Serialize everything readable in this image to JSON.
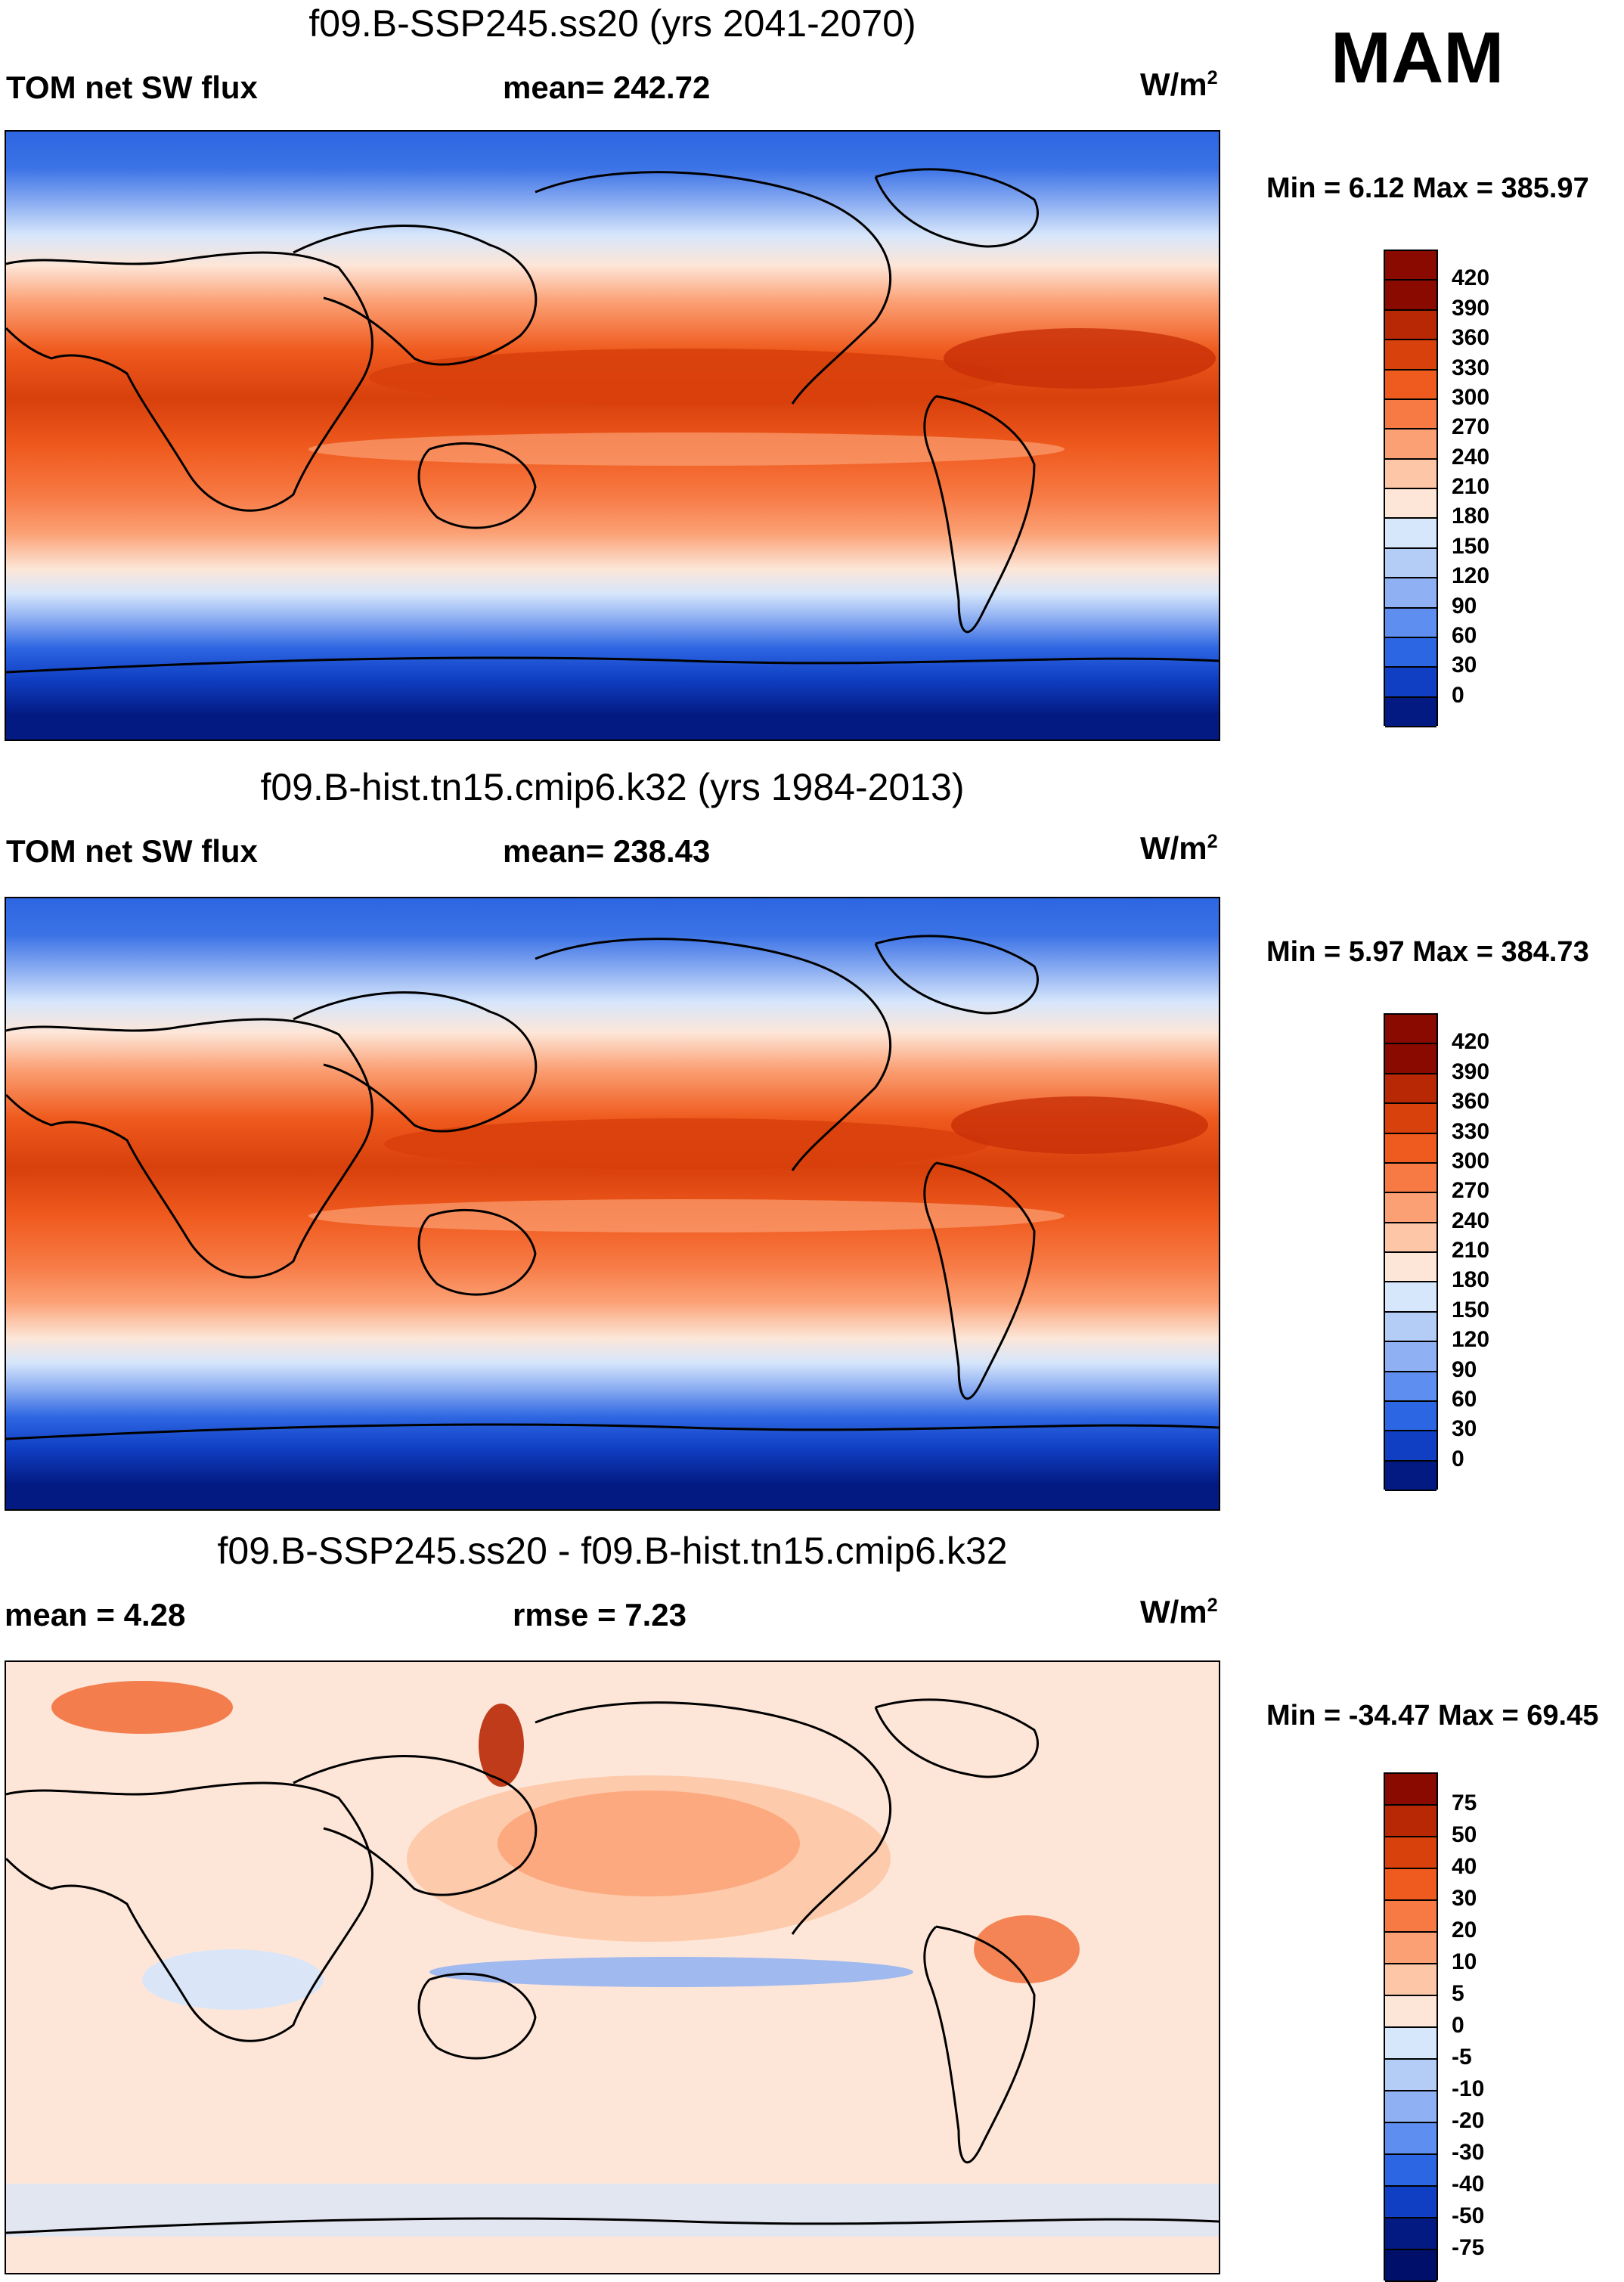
{
  "season": "MAM",
  "panels": [
    {
      "title": "f09.B-SSP245.ss20 (yrs 2041-2070)",
      "left_label": "TOM net SW flux",
      "center_label": "mean= 242.72",
      "units_base": "W/m",
      "units_exp": "2",
      "minmax": "Min =    6.12 Max = 385.97",
      "kind": "abs",
      "colorbar": {
        "labels": [
          "420",
          "390",
          "360",
          "330",
          "300",
          "270",
          "240",
          "210",
          "180",
          "150",
          "120",
          "90",
          "60",
          "30",
          "0"
        ],
        "colors": [
          "#8a0a00",
          "#b82805",
          "#d8400c",
          "#ef5a1e",
          "#f77a45",
          "#fba074",
          "#fdc6a6",
          "#fde6d8",
          "#d6e6fb",
          "#b3cdf7",
          "#8fb0f2",
          "#5e8eef",
          "#2d66e2",
          "#103fc4",
          "#031a82"
        ]
      }
    },
    {
      "title": "f09.B-hist.tn15.cmip6.k32 (yrs 1984-2013)",
      "left_label": "TOM net SW flux",
      "center_label": "mean= 238.43",
      "units_base": "W/m",
      "units_exp": "2",
      "minmax": "Min =    5.97 Max = 384.73",
      "kind": "abs",
      "colorbar": {
        "labels": [
          "420",
          "390",
          "360",
          "330",
          "300",
          "270",
          "240",
          "210",
          "180",
          "150",
          "120",
          "90",
          "60",
          "30",
          "0"
        ],
        "colors": [
          "#8a0a00",
          "#b82805",
          "#d8400c",
          "#ef5a1e",
          "#f77a45",
          "#fba074",
          "#fdc6a6",
          "#fde6d8",
          "#d6e6fb",
          "#b3cdf7",
          "#8fb0f2",
          "#5e8eef",
          "#2d66e2",
          "#103fc4",
          "#031a82"
        ]
      }
    },
    {
      "title": "f09.B-SSP245.ss20 - f09.B-hist.tn15.cmip6.k32",
      "left_label": "mean =    4.28",
      "center_label": "rmse =    7.23",
      "units_base": "W/m",
      "units_exp": "2",
      "minmax": "Min = -34.47 Max =  69.45",
      "kind": "diff",
      "colorbar": {
        "labels": [
          "75",
          "50",
          "40",
          "30",
          "20",
          "10",
          "5",
          "0",
          "-5",
          "-10",
          "-20",
          "-30",
          "-40",
          "-50",
          "-75"
        ],
        "colors": [
          "#8a0a00",
          "#b82805",
          "#d8400c",
          "#ef5a1e",
          "#f77a45",
          "#fba074",
          "#fdc6a6",
          "#fde6d8",
          "#d6e6fb",
          "#b3cdf7",
          "#8fb0f2",
          "#5e8eef",
          "#2d66e2",
          "#103fc4",
          "#031a82",
          "#00106a"
        ]
      }
    }
  ]
}
